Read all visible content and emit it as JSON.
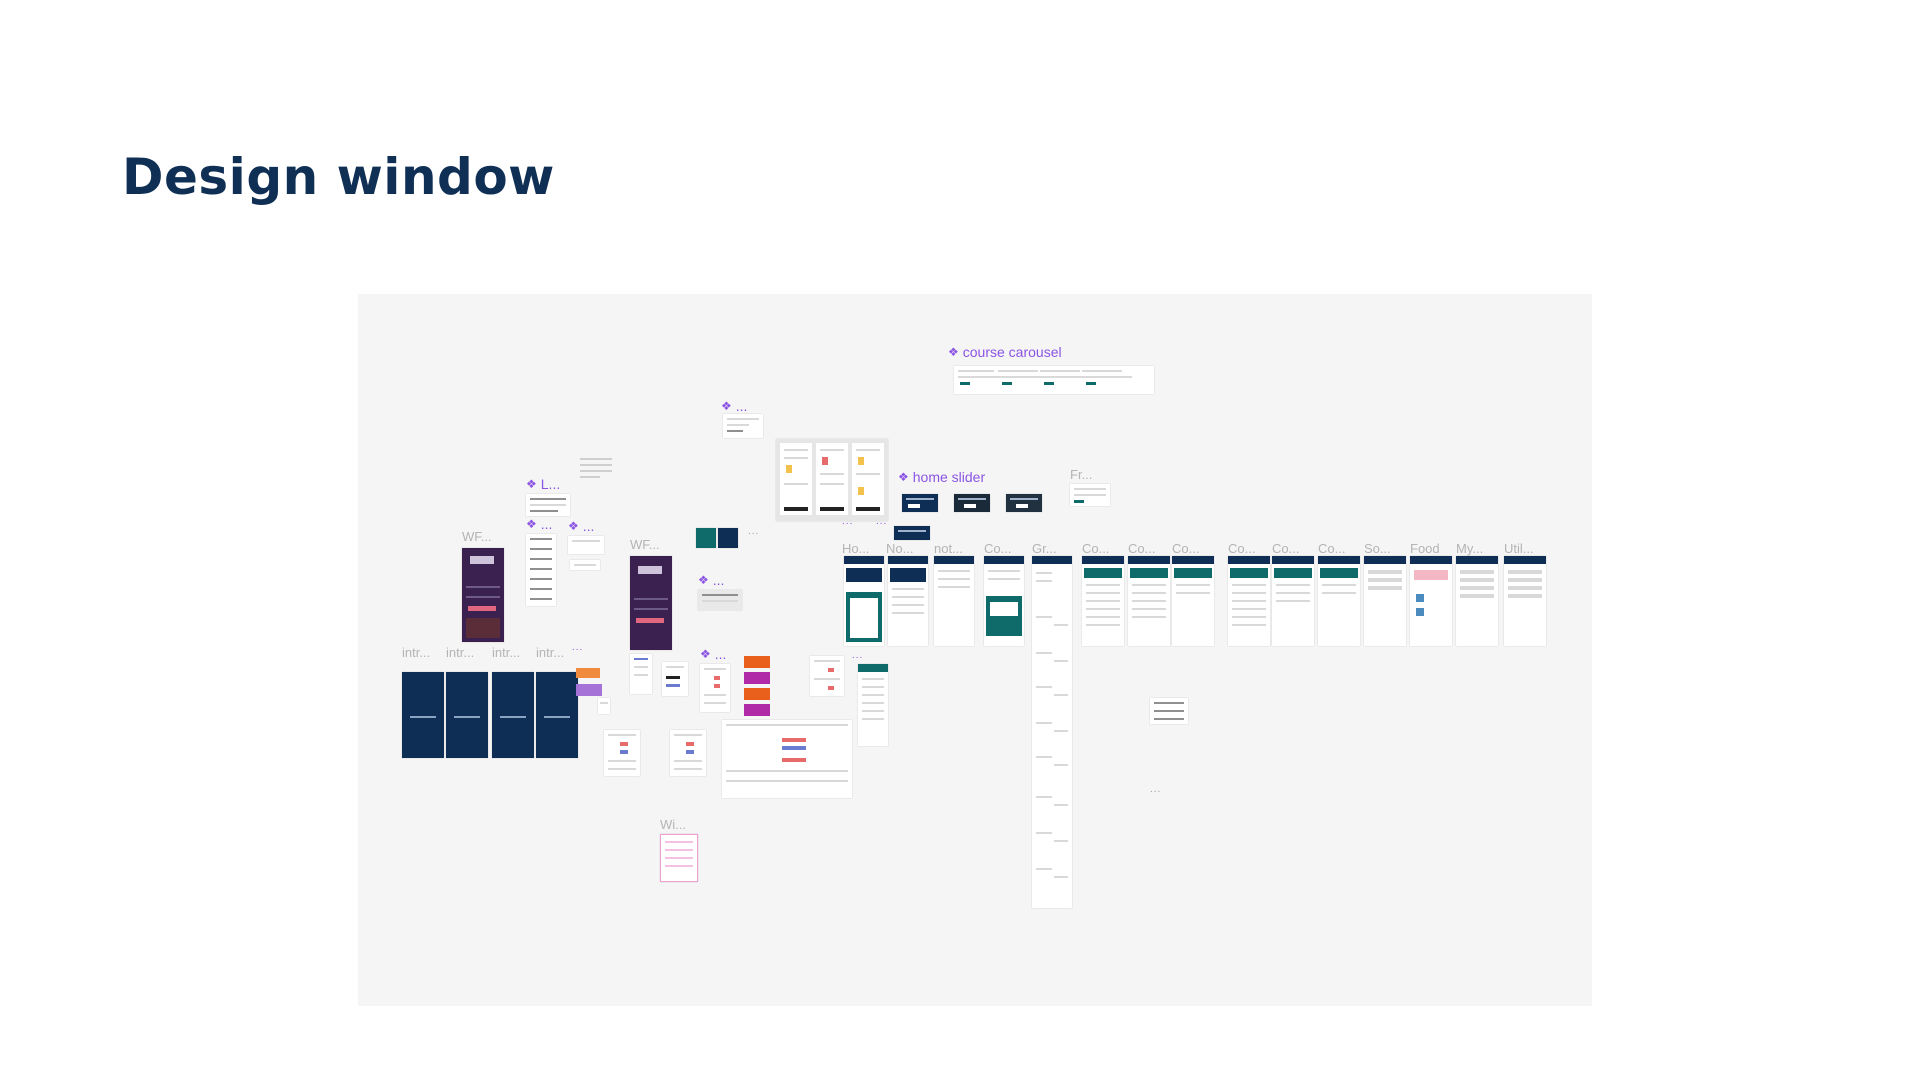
{
  "slide": {
    "title": "Design window"
  },
  "canvas": {
    "components": {
      "course_carousel": "course carousel",
      "home_slider": "home slider",
      "l": "L...",
      "more": "..."
    },
    "frame_labels": {
      "wf1": "WF...",
      "wf2": "WF...",
      "intr1": "intr...",
      "intr2": "intr...",
      "intr3": "intr...",
      "intr4": "intr...",
      "ho": "Ho...",
      "no": "No...",
      "not": "not...",
      "co1": "Co...",
      "gr": "Gr...",
      "co2": "Co...",
      "co3": "Co...",
      "co4": "Co...",
      "co5": "Co...",
      "co6": "Co...",
      "co7": "Co...",
      "so": "So...",
      "food": "Food",
      "my": "My...",
      "util": "Util...",
      "fr": "Fr...",
      "wi": "Wi..."
    },
    "colors": {
      "canvas_bg": "#f5f5f5",
      "navy": "#0e2e55",
      "teal": "#0f6b6a",
      "component_purple": "#8c54e4",
      "orange": "#e8601c",
      "magenta": "#b02aa8"
    }
  }
}
